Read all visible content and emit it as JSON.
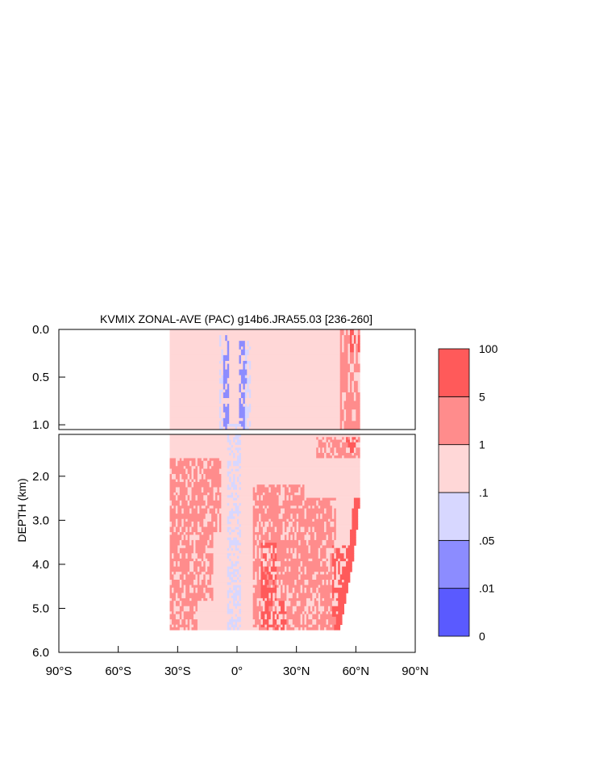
{
  "chart_data": {
    "type": "heatmap",
    "title": "KVMIX ZONAL-AVE (PAC) g14b6.JRA55.03 [236-260]",
    "ylabel": "DEPTH (km)",
    "xlabel": "",
    "xlim": [
      -90,
      90
    ],
    "x_ticks": [
      -90,
      -60,
      -30,
      0,
      30,
      60,
      90
    ],
    "x_tick_labels": [
      "90°S",
      "60°S",
      "30°S",
      "0°",
      "30°N",
      "60°N",
      "90°N"
    ],
    "upper_panel": {
      "ylim": [
        0.0,
        1.05
      ],
      "y_ticks": [
        0.0,
        0.5,
        1.0
      ],
      "y_tick_labels": [
        "0.0",
        "0.5",
        "1.0"
      ]
    },
    "lower_panel": {
      "ylim": [
        1.05,
        6.0
      ],
      "y_ticks": [
        2.0,
        3.0,
        4.0,
        5.0,
        6.0
      ],
      "y_tick_labels": [
        "2.0",
        "3.0",
        "4.0",
        "5.0",
        "6.0"
      ]
    },
    "colorbar": {
      "levels": [
        "0",
        ".01",
        ".05",
        ".1",
        "1",
        "5",
        "100"
      ],
      "colors": [
        "#5a5aff",
        "#8c8cff",
        "#d7d7ff",
        "#ffd7d7",
        "#ff8c8c",
        "#ff5a5a"
      ]
    },
    "regions": {
      "data_west_edge": -34,
      "background_class": 3,
      "east_edge_profile": [
        [
          0.0,
          62
        ],
        [
          1.0,
          62
        ],
        [
          2.5,
          62
        ],
        [
          3.0,
          61
        ],
        [
          3.8,
          59
        ],
        [
          4.5,
          56
        ],
        [
          5.0,
          54
        ],
        [
          5.5,
          52
        ]
      ],
      "shallow_bottom": 5.5,
      "low_mix_band": [
        [
          0.05,
          -7,
          -4,
          1
        ],
        [
          0.05,
          1,
          5,
          1
        ],
        [
          0.05,
          -9,
          -7,
          2
        ],
        [
          0.05,
          4,
          7,
          2
        ],
        [
          1.0,
          -5,
          2,
          2
        ],
        [
          5.5,
          -3,
          1,
          2
        ]
      ],
      "high_mix_patches": [
        [
          1.1,
          1.6,
          40,
          62,
          4
        ],
        [
          1.6,
          3.3,
          -34,
          -8,
          4
        ],
        [
          2.0,
          4.8,
          -32,
          -12,
          4
        ],
        [
          2.2,
          5.5,
          8,
          34,
          4
        ],
        [
          2.5,
          5.5,
          30,
          50,
          4
        ],
        [
          3.0,
          5.5,
          -34,
          -20,
          4
        ],
        [
          3.5,
          5.4,
          12,
          20,
          5
        ],
        [
          3.6,
          5.2,
          48,
          56,
          5
        ],
        [
          4.8,
          5.5,
          15,
          25,
          5
        ],
        [
          0.0,
          1.05,
          52,
          62,
          4
        ],
        [
          0.0,
          0.25,
          57,
          62,
          5
        ],
        [
          1.1,
          1.5,
          55,
          61,
          5
        ]
      ]
    }
  }
}
